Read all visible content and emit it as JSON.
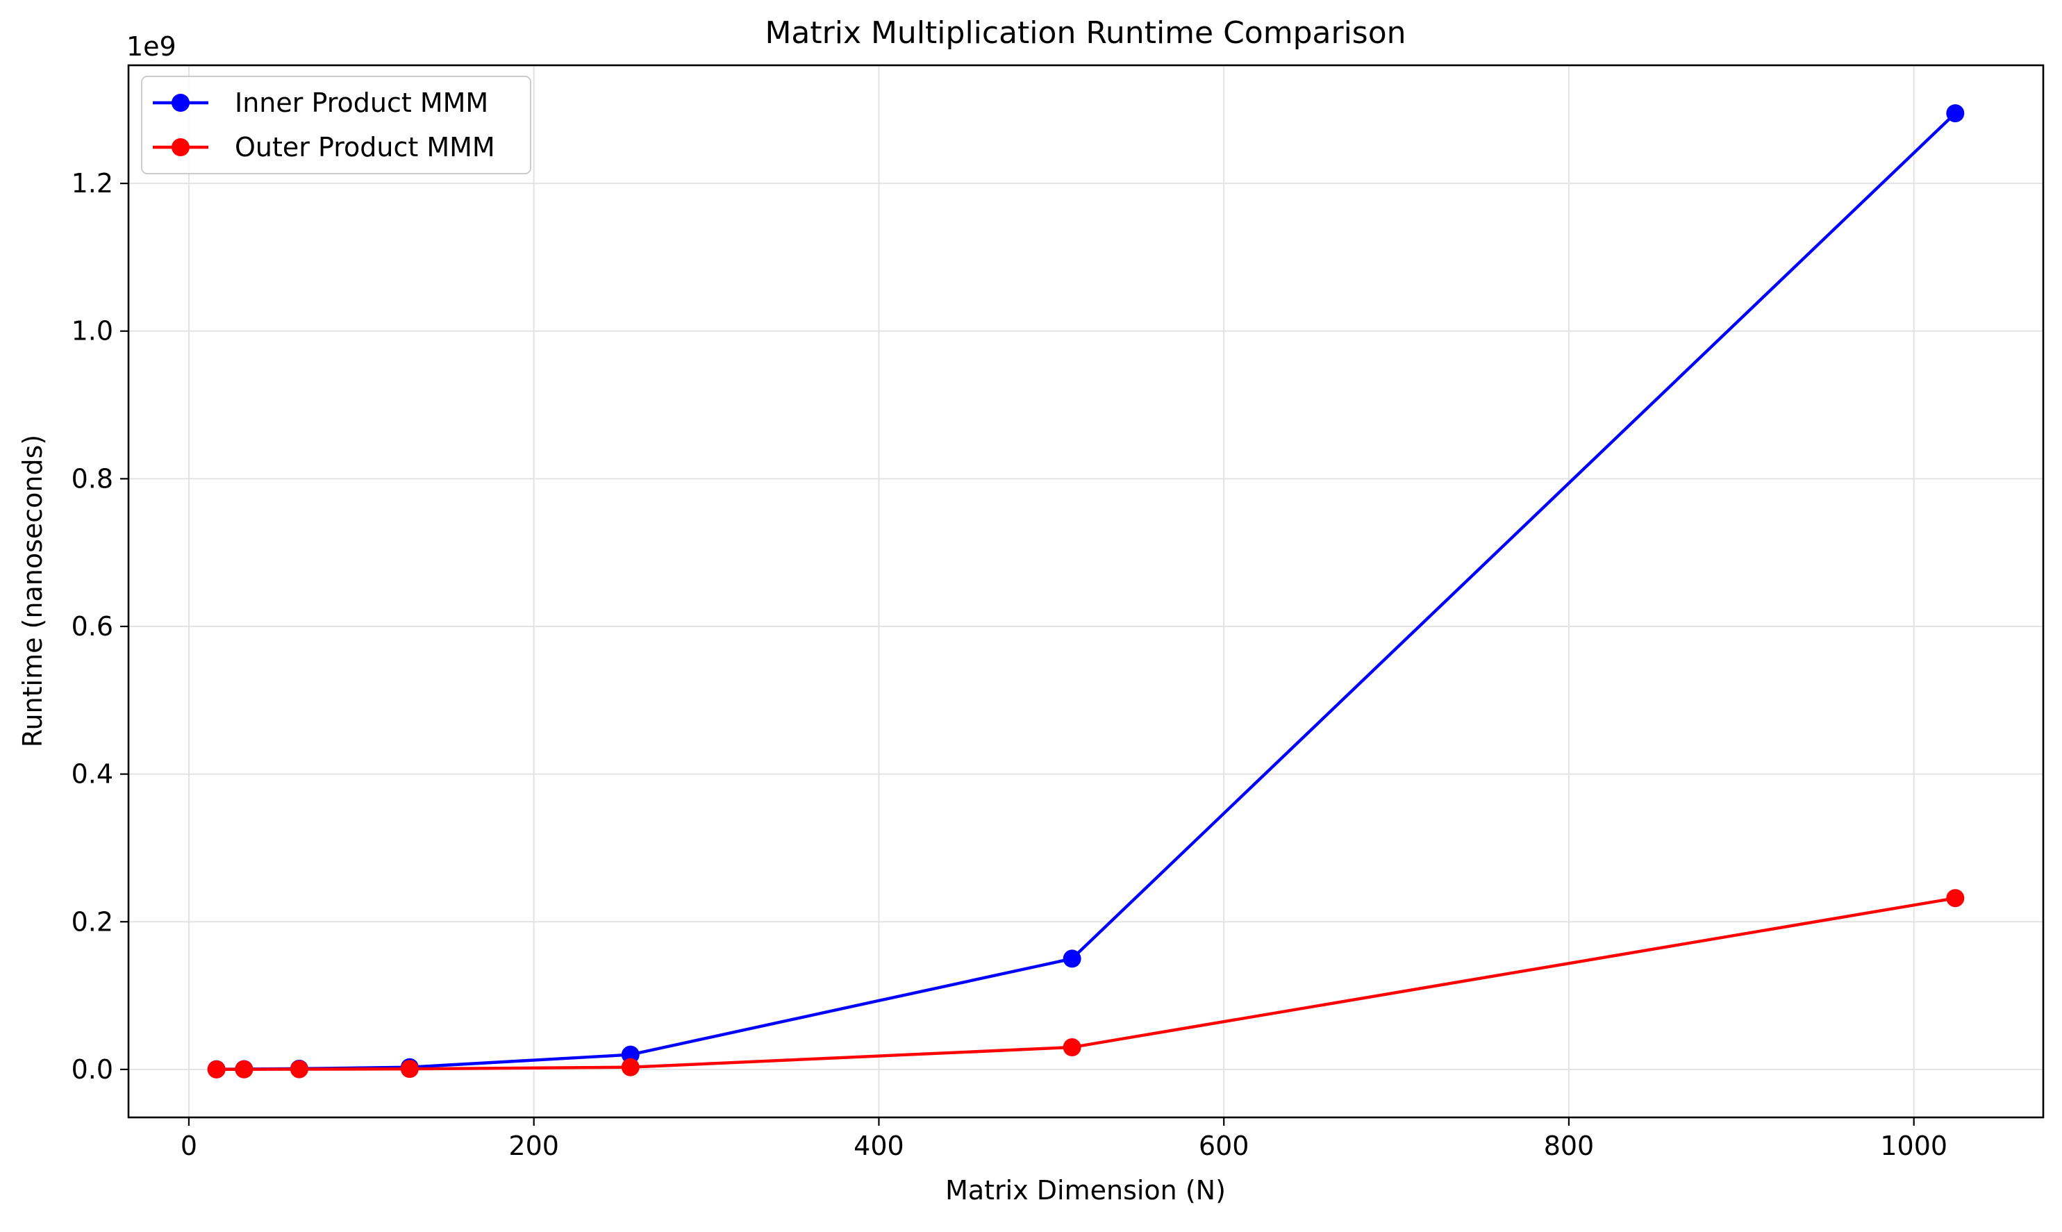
{
  "chart_data": {
    "type": "line",
    "title": "Matrix Multiplication Runtime Comparison",
    "xlabel": "Matrix Dimension (N)",
    "ylabel": "Runtime (nanoseconds)",
    "y_offset_label": "1e9",
    "xlim": [
      -35,
      1075
    ],
    "ylim": [
      -0.065,
      1.36
    ],
    "y_scale_multiplier": 1000000000,
    "x_ticks": [
      0,
      200,
      400,
      600,
      800,
      1000
    ],
    "x_tick_labels": [
      "0",
      "200",
      "400",
      "600",
      "800",
      "1000"
    ],
    "y_ticks": [
      0.0,
      0.2,
      0.4,
      0.6,
      0.8,
      1.0,
      1.2
    ],
    "y_tick_labels": [
      "0.0",
      "0.2",
      "0.4",
      "0.6",
      "0.8",
      "1.0",
      "1.2"
    ],
    "grid": true,
    "legend_position": "top-left",
    "x": [
      16,
      32,
      64,
      128,
      256,
      512,
      1024
    ],
    "series": [
      {
        "name": "Inner Product MMM",
        "color": "#0000ff",
        "values": [
          0.0002,
          0.0004,
          0.001,
          0.003,
          0.02,
          0.15,
          1.295
        ]
      },
      {
        "name": "Outer Product MMM",
        "color": "#ff0000",
        "values": [
          5e-05,
          0.0001,
          0.0003,
          0.0007,
          0.003,
          0.03,
          0.232
        ]
      }
    ]
  }
}
